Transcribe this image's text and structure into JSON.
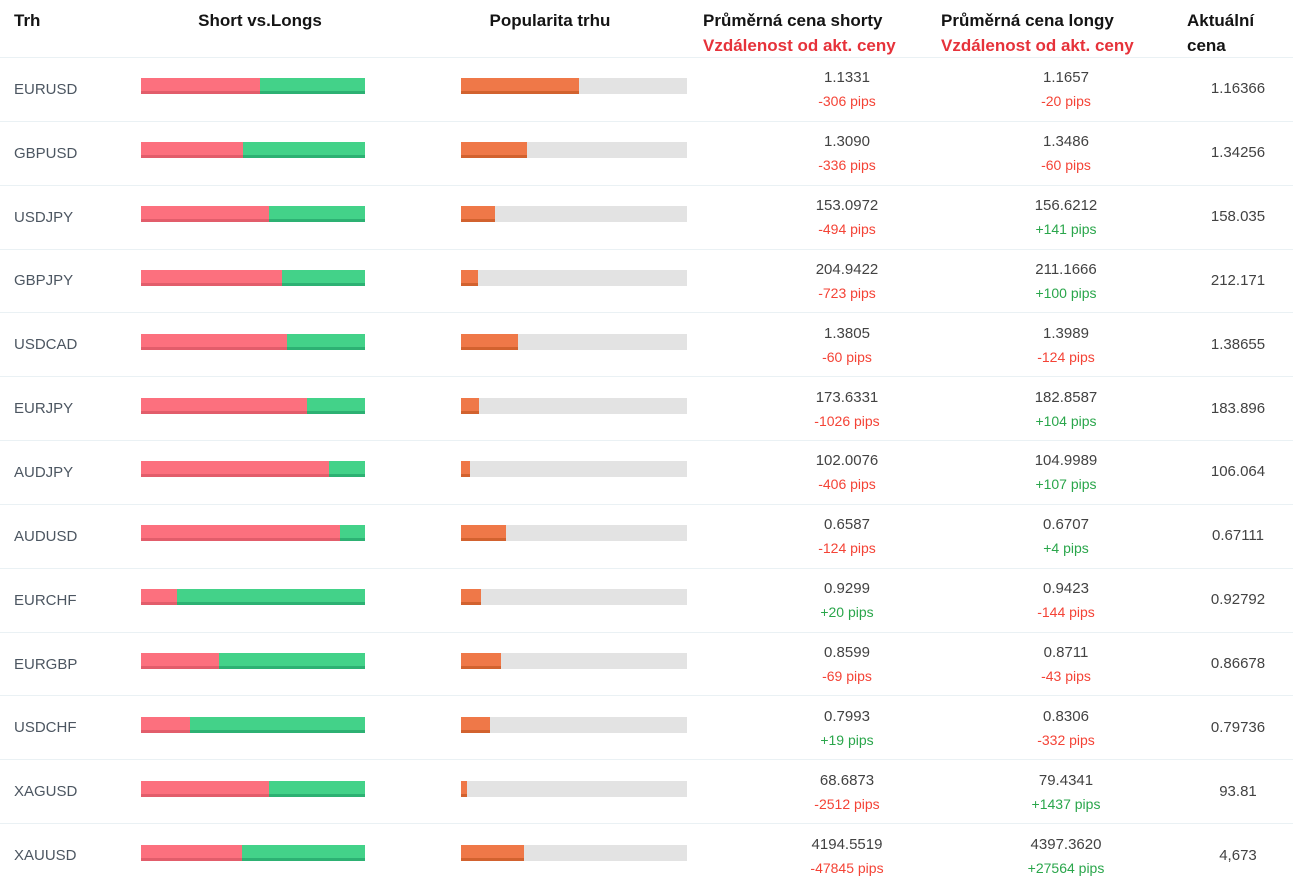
{
  "header": {
    "market": "Trh",
    "short_vs_longs": "Short vs.Longs",
    "popularity": "Popularita trhu",
    "avg_short_line1": "Průměrná cena shorty",
    "avg_short_line2": "Vzdálenost od akt. ceny",
    "avg_long_line1": "Průměrná cena longy",
    "avg_long_line2": "Vzdálenost od akt. ceny",
    "current_line1": "Aktuální",
    "current_line2": "cena"
  },
  "colors": {
    "short": "#fc707e",
    "long": "#43d289",
    "popularity": "#ef7848",
    "track": "#e3e3e3",
    "pips_neg": "#f44336",
    "pips_pos": "#2aa64b",
    "header_red": "#e6323a"
  },
  "rows": [
    {
      "market": "EURUSD",
      "short_pct": 53,
      "long_pct": 47,
      "popularity_pct": 52,
      "short_price": "1.1331",
      "short_dist": "-306 pips",
      "long_price": "1.1657",
      "long_dist": "-20 pips",
      "current_price": "1.16366"
    },
    {
      "market": "GBPUSD",
      "short_pct": 45.5,
      "long_pct": 54.5,
      "popularity_pct": 29,
      "short_price": "1.3090",
      "short_dist": "-336 pips",
      "long_price": "1.3486",
      "long_dist": "-60 pips",
      "current_price": "1.34256"
    },
    {
      "market": "USDJPY",
      "short_pct": 57,
      "long_pct": 43,
      "popularity_pct": 15,
      "short_price": "153.0972",
      "short_dist": "-494 pips",
      "long_price": "156.6212",
      "long_dist": "+141 pips",
      "current_price": "158.035"
    },
    {
      "market": "GBPJPY",
      "short_pct": 63,
      "long_pct": 37,
      "popularity_pct": 7.5,
      "short_price": "204.9422",
      "short_dist": "-723 pips",
      "long_price": "211.1666",
      "long_dist": "+100 pips",
      "current_price": "212.171"
    },
    {
      "market": "USDCAD",
      "short_pct": 65,
      "long_pct": 35,
      "popularity_pct": 25,
      "short_price": "1.3805",
      "short_dist": "-60 pips",
      "long_price": "1.3989",
      "long_dist": "-124 pips",
      "current_price": "1.38655"
    },
    {
      "market": "EURJPY",
      "short_pct": 74,
      "long_pct": 26,
      "popularity_pct": 8,
      "short_price": "173.6331",
      "short_dist": "-1026 pips",
      "long_price": "182.8587",
      "long_dist": "+104 pips",
      "current_price": "183.896"
    },
    {
      "market": "AUDJPY",
      "short_pct": 84,
      "long_pct": 16,
      "popularity_pct": 4,
      "short_price": "102.0076",
      "short_dist": "-406 pips",
      "long_price": "104.9989",
      "long_dist": "+107 pips",
      "current_price": "106.064"
    },
    {
      "market": "AUDUSD",
      "short_pct": 89,
      "long_pct": 11,
      "popularity_pct": 20,
      "short_price": "0.6587",
      "short_dist": "-124 pips",
      "long_price": "0.6707",
      "long_dist": "+4 pips",
      "current_price": "0.67111"
    },
    {
      "market": "EURCHF",
      "short_pct": 16,
      "long_pct": 84,
      "popularity_pct": 9,
      "short_price": "0.9299",
      "short_dist": "+20 pips",
      "long_price": "0.9423",
      "long_dist": "-144 pips",
      "current_price": "0.92792"
    },
    {
      "market": "EURGBP",
      "short_pct": 35,
      "long_pct": 65,
      "popularity_pct": 17.5,
      "short_price": "0.8599",
      "short_dist": "-69 pips",
      "long_price": "0.8711",
      "long_dist": "-43 pips",
      "current_price": "0.86678"
    },
    {
      "market": "USDCHF",
      "short_pct": 22,
      "long_pct": 78,
      "popularity_pct": 13,
      "short_price": "0.7993",
      "short_dist": "+19 pips",
      "long_price": "0.8306",
      "long_dist": "-332 pips",
      "current_price": "0.79736"
    },
    {
      "market": "XAGUSD",
      "short_pct": 57,
      "long_pct": 43,
      "popularity_pct": 2.5,
      "short_price": "68.6873",
      "short_dist": "-2512 pips",
      "long_price": "79.4341",
      "long_dist": "+1437 pips",
      "current_price": "93.81"
    },
    {
      "market": "XAUUSD",
      "short_pct": 45,
      "long_pct": 55,
      "popularity_pct": 28,
      "short_price": "4194.5519",
      "short_dist": "-47845 pips",
      "long_price": "4397.3620",
      "long_dist": "+27564 pips",
      "current_price": "4,673"
    }
  ]
}
